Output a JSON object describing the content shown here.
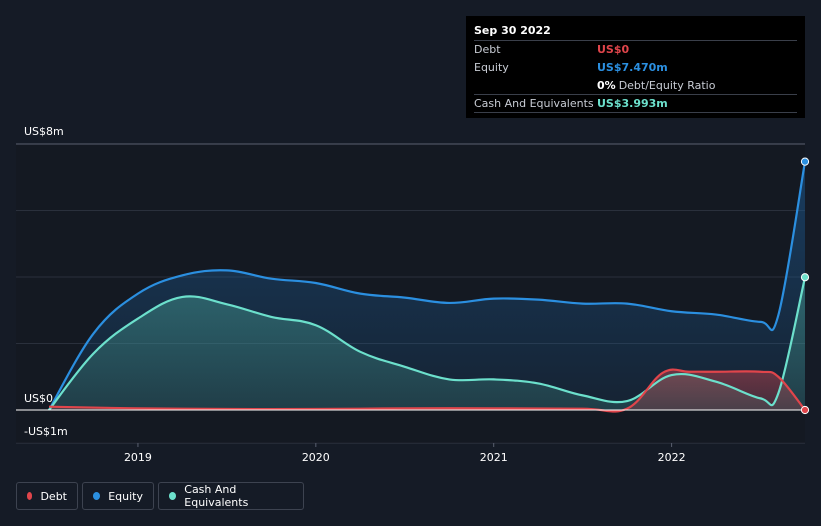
{
  "chart_data": {
    "type": "area",
    "ylim": [
      -1,
      8
    ],
    "y_tick_labels": [
      "US$8m",
      "US$0",
      "-US$1m"
    ],
    "y_tick_values": [
      8,
      0,
      -1
    ],
    "x_ticks": [
      {
        "label": "2019",
        "value": 2019.0
      },
      {
        "label": "2020",
        "value": 2020.0
      },
      {
        "label": "2021",
        "value": 2021.0
      },
      {
        "label": "2022",
        "value": 2022.0
      }
    ],
    "xlim": [
      2018.5,
      2022.75
    ],
    "series": [
      {
        "name": "Equity",
        "color": "#2b8fe0",
        "fill": "#1c4c7a",
        "points": [
          [
            2018.5,
            0
          ],
          [
            2018.75,
            2.3
          ],
          [
            2019.0,
            3.5
          ],
          [
            2019.25,
            4.05
          ],
          [
            2019.5,
            4.2
          ],
          [
            2019.75,
            3.95
          ],
          [
            2020.0,
            3.82
          ],
          [
            2020.25,
            3.5
          ],
          [
            2020.5,
            3.38
          ],
          [
            2020.75,
            3.22
          ],
          [
            2021.0,
            3.35
          ],
          [
            2021.25,
            3.32
          ],
          [
            2021.5,
            3.2
          ],
          [
            2021.75,
            3.2
          ],
          [
            2022.0,
            2.97
          ],
          [
            2022.25,
            2.87
          ],
          [
            2022.5,
            2.65
          ],
          [
            2022.6,
            2.85
          ],
          [
            2022.75,
            7.47
          ]
        ]
      },
      {
        "name": "Cash And Equivalents",
        "color": "#6ce0cc",
        "fill": "#3b6f6c",
        "points": [
          [
            2018.5,
            0
          ],
          [
            2018.75,
            1.7
          ],
          [
            2019.0,
            2.75
          ],
          [
            2019.25,
            3.4
          ],
          [
            2019.5,
            3.18
          ],
          [
            2019.75,
            2.8
          ],
          [
            2020.0,
            2.55
          ],
          [
            2020.25,
            1.75
          ],
          [
            2020.5,
            1.3
          ],
          [
            2020.75,
            0.92
          ],
          [
            2021.0,
            0.92
          ],
          [
            2021.25,
            0.8
          ],
          [
            2021.5,
            0.44
          ],
          [
            2021.75,
            0.27
          ],
          [
            2022.0,
            1.05
          ],
          [
            2022.25,
            0.85
          ],
          [
            2022.5,
            0.35
          ],
          [
            2022.6,
            0.5
          ],
          [
            2022.75,
            3.993
          ]
        ]
      },
      {
        "name": "Debt",
        "color": "#e0454b",
        "fill": "#6b3c43",
        "points": [
          [
            2018.5,
            0.1
          ],
          [
            2019.0,
            0.05
          ],
          [
            2019.5,
            0.03
          ],
          [
            2020.0,
            0.03
          ],
          [
            2020.5,
            0.05
          ],
          [
            2021.0,
            0.05
          ],
          [
            2021.5,
            0.04
          ],
          [
            2021.75,
            0.04
          ],
          [
            2021.95,
            1.12
          ],
          [
            2022.1,
            1.15
          ],
          [
            2022.25,
            1.15
          ],
          [
            2022.5,
            1.15
          ],
          [
            2022.6,
            1.0
          ],
          [
            2022.75,
            0
          ]
        ]
      }
    ]
  },
  "tooltip": {
    "date": "Sep 30 2022",
    "rows": [
      {
        "label": "Debt",
        "value": "US$0",
        "color": "#e0454b"
      },
      {
        "label": "Equity",
        "value": "US$7.470m",
        "color": "#2b8fe0"
      },
      {
        "label": "",
        "value": "0%",
        "sub": "Debt/Equity Ratio",
        "color": "#ffffff"
      },
      {
        "label": "Cash And Equivalents",
        "value": "US$3.993m",
        "color": "#6ce0cc"
      }
    ]
  },
  "legend": [
    {
      "label": "Debt",
      "color": "#e0454b"
    },
    {
      "label": "Equity",
      "color": "#2b8fe0"
    },
    {
      "label": "Cash And Equivalents",
      "color": "#6ce0cc"
    }
  ]
}
